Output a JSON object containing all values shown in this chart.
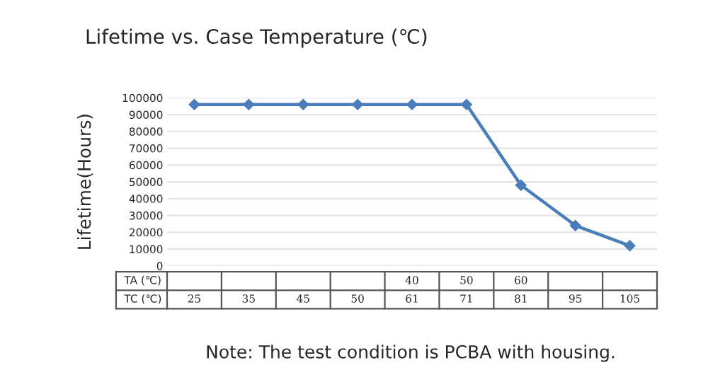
{
  "chart_data": {
    "type": "line",
    "title": "Lifetime vs. Case Temperature (℃)",
    "ylabel": "Lifetime(Hours)",
    "categories": [
      "\n25",
      "\n35",
      "\n45",
      "\n50",
      "40\n61",
      "50\n71",
      "60\n81",
      "\n95",
      "\n105"
    ],
    "series": [
      {
        "color": "#4a7ebb",
        "values": [
          96000,
          96000,
          96000,
          96000,
          96000,
          96000,
          48000,
          24000,
          12000
        ]
      }
    ],
    "ylim": [
      0,
      100000
    ],
    "yticks": [
      0,
      10000,
      20000,
      30000,
      40000,
      50000,
      60000,
      70000,
      80000,
      90000,
      100000
    ],
    "grid": "y",
    "marker": "diamond",
    "line_style": "solid",
    "annotations": [
      "TA (℃)",
      "TC (℃)",
      "Note: The test condition is PCBA with housing."
    ]
  }
}
